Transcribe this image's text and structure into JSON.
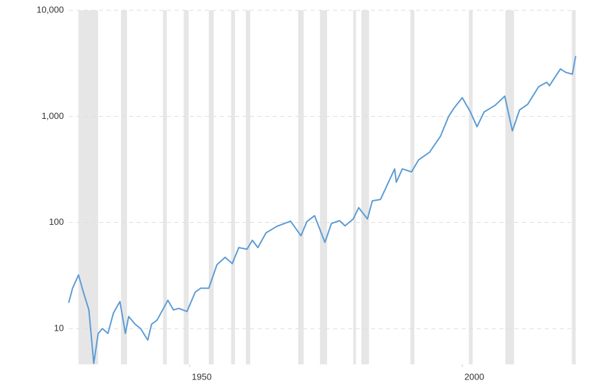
{
  "chart_data": {
    "type": "line",
    "log_scale_y": true,
    "grid": true,
    "xlim": [
      1927.8,
      2020.8
    ],
    "xticks": [
      1950,
      2000
    ],
    "ylim": [
      4.6,
      10000
    ],
    "yticks": [
      10,
      100,
      {
        "value": 1000,
        "label": "1,000"
      },
      {
        "value": 10000,
        "label": "10,000"
      }
    ],
    "shade_color": "#e6e6e6",
    "shaded_periods": [
      [
        1929.6,
        1933.2
      ],
      [
        1937.4,
        1938.5
      ],
      [
        1945.1,
        1945.8
      ],
      [
        1948.9,
        1949.8
      ],
      [
        1953.5,
        1954.4
      ],
      [
        1957.6,
        1958.3
      ],
      [
        1960.3,
        1961.1
      ],
      [
        1969.9,
        1970.9
      ],
      [
        1973.9,
        1975.2
      ],
      [
        1980.0,
        1980.5
      ],
      [
        1981.5,
        1982.9
      ],
      [
        1990.5,
        1991.2
      ],
      [
        2001.2,
        2001.9
      ],
      [
        2007.9,
        2009.5
      ],
      [
        2020.1,
        2020.8
      ]
    ],
    "series": [
      {
        "color": "#5b9bd5",
        "x": [
          1927.8,
          1928.5,
          1929.6,
          1930.5,
          1931.5,
          1932.4,
          1933.2,
          1934,
          1935,
          1936,
          1937.2,
          1938.2,
          1938.8,
          1940,
          1941,
          1942.3,
          1943,
          1944,
          1946,
          1947,
          1948,
          1949.5,
          1951,
          1952,
          1953.5,
          1955,
          1956.5,
          1957.8,
          1959,
          1960.5,
          1961.5,
          1962.5,
          1964,
          1966,
          1968.5,
          1970.4,
          1971.5,
          1972.9,
          1974.8,
          1976,
          1977.5,
          1978.5,
          1980,
          1981,
          1982.6,
          1983.5,
          1985,
          1987.6,
          1987.9,
          1989,
          1990.7,
          1992,
          1994,
          1996,
          1997.5,
          1998.5,
          2000,
          2001.5,
          2002.7,
          2004,
          2006,
          2007.8,
          2009.2,
          2010.5,
          2012,
          2014,
          2015.5,
          2016,
          2018,
          2019,
          2020.2,
          2020.8
        ],
        "values": [
          17.5,
          24,
          32,
          22,
          15,
          4.7,
          9,
          10,
          9,
          14,
          18,
          9,
          13,
          11,
          10,
          7.8,
          11,
          12,
          18.5,
          15,
          15.5,
          14.5,
          22,
          24,
          24,
          40,
          47,
          41,
          58,
          56,
          68,
          58,
          80,
          92,
          103,
          75,
          102,
          116,
          65,
          98,
          104,
          93,
          108,
          138,
          108,
          160,
          165,
          320,
          240,
          320,
          300,
          390,
          460,
          650,
          1000,
          1200,
          1500,
          1100,
          800,
          1100,
          1270,
          1550,
          730,
          1150,
          1300,
          1900,
          2100,
          1950,
          2800,
          2600,
          2500,
          3700
        ]
      }
    ]
  }
}
